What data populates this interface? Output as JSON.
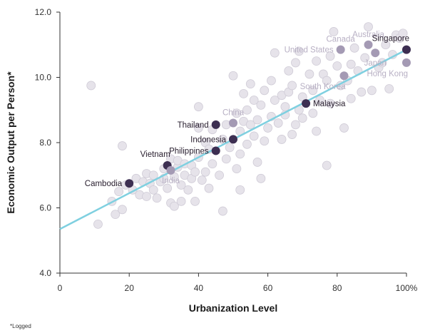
{
  "chart_data": {
    "type": "scatter",
    "xlabel": "Urbanization Level",
    "ylabel": "Economic Output per Person*",
    "xlim": [
      0,
      100
    ],
    "ylim": [
      4.0,
      12.0
    ],
    "x_ticks": [
      0,
      20,
      40,
      60,
      80,
      100
    ],
    "x_tick_labels": [
      "0",
      "20",
      "40",
      "60",
      "80",
      "100%"
    ],
    "y_ticks": [
      4,
      6,
      8,
      10,
      12
    ],
    "y_tick_labels": [
      "4.0",
      "6.0",
      "8.0",
      "10.0",
      "12.0"
    ],
    "grid": false,
    "trendline": {
      "x": [
        0,
        100
      ],
      "y": [
        5.35,
        10.85
      ]
    },
    "labeled_points": [
      {
        "name": "Cambodia",
        "x": 20,
        "y": 6.75,
        "style": "dark",
        "anchor": "left"
      },
      {
        "name": "Vietnam",
        "x": 31,
        "y": 7.3,
        "style": "dark",
        "anchor": "above-left"
      },
      {
        "name": "India",
        "x": 32,
        "y": 7.15,
        "style": "light",
        "anchor": "below"
      },
      {
        "name": "Thailand",
        "x": 45,
        "y": 8.55,
        "style": "dark",
        "anchor": "left"
      },
      {
        "name": "China",
        "x": 50,
        "y": 8.6,
        "style": "light",
        "anchor": "above"
      },
      {
        "name": "Philippines",
        "x": 45,
        "y": 7.75,
        "style": "dark",
        "anchor": "left"
      },
      {
        "name": "Indonesia",
        "x": 50,
        "y": 8.1,
        "style": "dark",
        "anchor": "left"
      },
      {
        "name": "Malaysia",
        "x": 71,
        "y": 9.2,
        "style": "dark",
        "anchor": "right"
      },
      {
        "name": "South Korea",
        "x": 82,
        "y": 10.05,
        "style": "light",
        "anchor": "below-left"
      },
      {
        "name": "United States",
        "x": 81,
        "y": 10.85,
        "style": "light",
        "anchor": "left"
      },
      {
        "name": "Canada",
        "x": 81,
        "y": 10.85,
        "style": "light",
        "anchor": "above"
      },
      {
        "name": "Australia",
        "x": 89,
        "y": 11.0,
        "style": "light",
        "anchor": "above"
      },
      {
        "name": "Japan",
        "x": 91,
        "y": 10.75,
        "style": "light",
        "anchor": "below"
      },
      {
        "name": "Singapore",
        "x": 100,
        "y": 10.85,
        "style": "dark",
        "anchor": "above-left"
      },
      {
        "name": "Hong Kong",
        "x": 100,
        "y": 10.45,
        "style": "light",
        "anchor": "below-left"
      }
    ],
    "other_points": [
      [
        9,
        9.75
      ],
      [
        11,
        5.5
      ],
      [
        15,
        6.2
      ],
      [
        16,
        5.8
      ],
      [
        17,
        6.5
      ],
      [
        18,
        5.95
      ],
      [
        18,
        7.9
      ],
      [
        19,
        6.7
      ],
      [
        21,
        6.55
      ],
      [
        22,
        6.9
      ],
      [
        23,
        6.4
      ],
      [
        24,
        6.8
      ],
      [
        25,
        7.05
      ],
      [
        25,
        6.35
      ],
      [
        26,
        6.75
      ],
      [
        27,
        6.55
      ],
      [
        27,
        7.0
      ],
      [
        28,
        6.3
      ],
      [
        29,
        6.8
      ],
      [
        30,
        6.9
      ],
      [
        30,
        7.2
      ],
      [
        31,
        6.6
      ],
      [
        32,
        6.15
      ],
      [
        32,
        7.5
      ],
      [
        33,
        6.95
      ],
      [
        33,
        6.05
      ],
      [
        34,
        7.25
      ],
      [
        34,
        7.45
      ],
      [
        35,
        6.7
      ],
      [
        35,
        6.2
      ],
      [
        36,
        7.0
      ],
      [
        36,
        7.35
      ],
      [
        37,
        6.55
      ],
      [
        38,
        7.3
      ],
      [
        38,
        6.9
      ],
      [
        39,
        7.1
      ],
      [
        39,
        6.2
      ],
      [
        40,
        7.55
      ],
      [
        40,
        8.45
      ],
      [
        40,
        9.1
      ],
      [
        41,
        6.85
      ],
      [
        42,
        7.1
      ],
      [
        42,
        8.0
      ],
      [
        43,
        6.6
      ],
      [
        43,
        7.8
      ],
      [
        44,
        7.35
      ],
      [
        44,
        8.4
      ],
      [
        46,
        7.0
      ],
      [
        47,
        5.9
      ],
      [
        47,
        8.1
      ],
      [
        48,
        7.5
      ],
      [
        48,
        8.55
      ],
      [
        49,
        7.85
      ],
      [
        50,
        10.05
      ],
      [
        51,
        7.2
      ],
      [
        51,
        8.9
      ],
      [
        52,
        6.55
      ],
      [
        52,
        7.65
      ],
      [
        52,
        8.35
      ],
      [
        53,
        9.5
      ],
      [
        53,
        8.65
      ],
      [
        54,
        9.0
      ],
      [
        54,
        7.95
      ],
      [
        55,
        9.8
      ],
      [
        55,
        8.55
      ],
      [
        56,
        8.2
      ],
      [
        56,
        9.3
      ],
      [
        57,
        8.7
      ],
      [
        57,
        7.4
      ],
      [
        58,
        9.15
      ],
      [
        58,
        6.9
      ],
      [
        59,
        8.05
      ],
      [
        59,
        9.6
      ],
      [
        60,
        8.45
      ],
      [
        61,
        8.8
      ],
      [
        61,
        9.9
      ],
      [
        62,
        9.3
      ],
      [
        62,
        10.75
      ],
      [
        63,
        8.6
      ],
      [
        64,
        8.1
      ],
      [
        64,
        9.45
      ],
      [
        65,
        9.1
      ],
      [
        65,
        8.85
      ],
      [
        66,
        9.55
      ],
      [
        66,
        10.2
      ],
      [
        67,
        8.25
      ],
      [
        67,
        9.75
      ],
      [
        68,
        8.55
      ],
      [
        68,
        10.45
      ],
      [
        69,
        9.0
      ],
      [
        69,
        10.8
      ],
      [
        70,
        8.75
      ],
      [
        70,
        9.4
      ],
      [
        72,
        10.1
      ],
      [
        73,
        8.9
      ],
      [
        73,
        9.6
      ],
      [
        74,
        10.5
      ],
      [
        74,
        8.35
      ],
      [
        75,
        9.3
      ],
      [
        76,
        10.1
      ],
      [
        77,
        9.9
      ],
      [
        77,
        7.3
      ],
      [
        78,
        10.65
      ],
      [
        78,
        9.2
      ],
      [
        79,
        11.4
      ],
      [
        80,
        10.35
      ],
      [
        81,
        9.75
      ],
      [
        82,
        8.45
      ],
      [
        83,
        9.9
      ],
      [
        84,
        10.4
      ],
      [
        84,
        9.35
      ],
      [
        85,
        10.9
      ],
      [
        86,
        10.2
      ],
      [
        87,
        9.55
      ],
      [
        88,
        10.6
      ],
      [
        89,
        11.55
      ],
      [
        90,
        9.6
      ],
      [
        92,
        10.3
      ],
      [
        93,
        10.45
      ],
      [
        94,
        11.0
      ],
      [
        95,
        9.65
      ],
      [
        96,
        10.7
      ],
      [
        97,
        11.3
      ],
      [
        98,
        11.2
      ],
      [
        99,
        11.35
      ]
    ],
    "colors": {
      "trendline": "#7fd0e0",
      "background_point": "#e6e3ea",
      "background_point_stroke": "#cfcbd6",
      "dark_point": "#3d2f52",
      "light_point": "#a49ab4",
      "dark_label": "#2a2030",
      "light_label": "#b8b0c4"
    }
  },
  "footnote": "*Logged"
}
